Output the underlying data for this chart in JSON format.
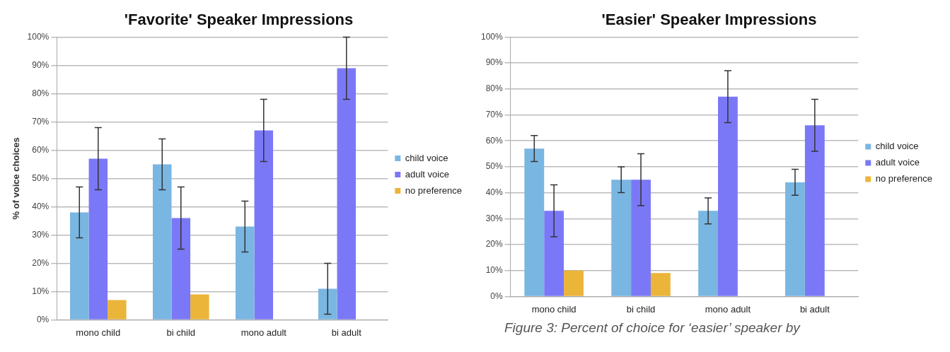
{
  "chart_data": [
    {
      "type": "bar",
      "title": "'Favorite' Speaker Impressions",
      "ylabel": "% of voice choices",
      "categories": [
        "mono child",
        "bi child",
        "mono adult",
        "bi adult"
      ],
      "series": [
        {
          "name": "child voice",
          "color": "#7ab6e2",
          "values": [
            38,
            55,
            33,
            11
          ],
          "errors": [
            [
              29,
              47
            ],
            [
              46,
              64
            ],
            [
              24,
              42
            ],
            [
              2,
              20
            ]
          ]
        },
        {
          "name": "adult voice",
          "color": "#7b78f7",
          "values": [
            57,
            36,
            67,
            89
          ],
          "errors": [
            [
              46,
              68
            ],
            [
              25,
              47
            ],
            [
              56,
              78
            ],
            [
              78,
              100
            ]
          ]
        },
        {
          "name": "no preference",
          "color": "#ebb53a",
          "values": [
            7,
            9,
            null,
            null
          ]
        }
      ],
      "ylim": [
        0,
        100
      ],
      "yticks": [
        {
          "value": 0,
          "label": "0%"
        },
        {
          "value": 10,
          "label": "10%"
        },
        {
          "value": 20,
          "label": "20%"
        },
        {
          "value": 30,
          "label": "30%"
        },
        {
          "value": 40,
          "label": "40%"
        },
        {
          "value": 50,
          "label": "50%"
        },
        {
          "value": 60,
          "label": "60%"
        },
        {
          "value": 70,
          "label": "70%"
        },
        {
          "value": 80,
          "label": "80%"
        },
        {
          "value": 90,
          "label": "90%"
        },
        {
          "value": 100,
          "label": "100%"
        }
      ],
      "grid": "y",
      "legend": "right"
    },
    {
      "type": "bar",
      "title": "'Easier' Speaker Impressions",
      "categories": [
        "mono child",
        "bi child",
        "mono adult",
        "bi adult"
      ],
      "series": [
        {
          "name": "child voice",
          "color": "#7ab6e2",
          "values": [
            57,
            45,
            33,
            44
          ],
          "errors": [
            [
              52,
              62
            ],
            [
              40,
              50
            ],
            [
              28,
              38
            ],
            [
              39,
              49
            ]
          ]
        },
        {
          "name": "adult voice",
          "color": "#7b78f7",
          "values": [
            33,
            45,
            77,
            66
          ],
          "errors": [
            [
              23,
              43
            ],
            [
              35,
              55
            ],
            [
              67,
              87
            ],
            [
              56,
              76
            ]
          ]
        },
        {
          "name": "no preference",
          "color": "#ebb53a",
          "values": [
            10,
            9,
            null,
            null
          ]
        }
      ],
      "ylim": [
        0,
        100
      ],
      "yticks": [
        {
          "value": 0,
          "label": "0%"
        },
        {
          "value": 10,
          "label": "10%"
        },
        {
          "value": 20,
          "label": "20%"
        },
        {
          "value": 30,
          "label": "30%"
        },
        {
          "value": 40,
          "label": "40%"
        },
        {
          "value": 50,
          "label": "50%"
        },
        {
          "value": 60,
          "label": "60%"
        },
        {
          "value": 70,
          "label": "70%"
        },
        {
          "value": 80,
          "label": "80%"
        },
        {
          "value": 90,
          "label": "90%"
        },
        {
          "value": 100,
          "label": "100%"
        }
      ],
      "grid": "y",
      "legend": "right",
      "annotations": [
        "Figure 3: Percent of choice for ‘easier’ speaker by"
      ]
    }
  ]
}
